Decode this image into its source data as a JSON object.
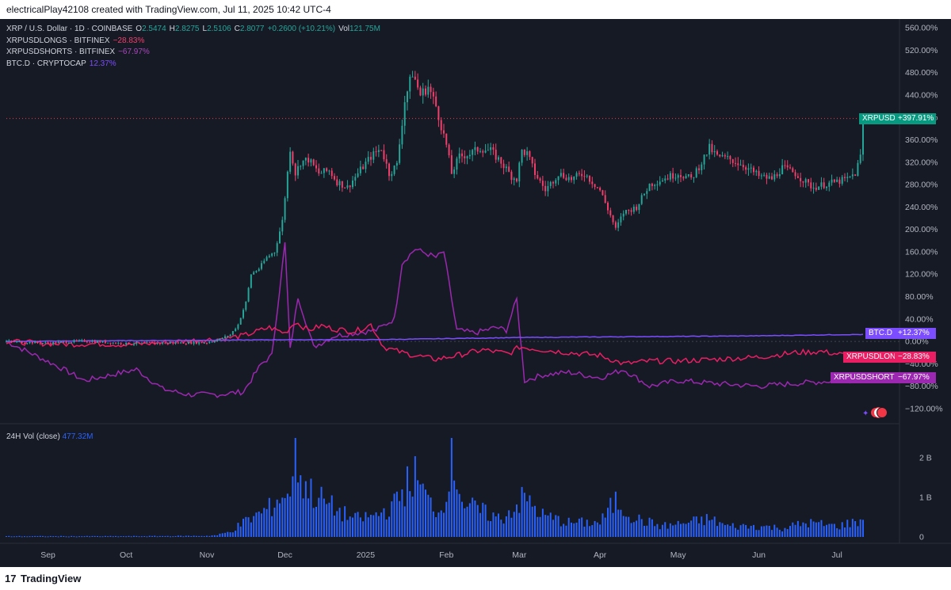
{
  "header": {
    "caption": "electricalPlay42108 created with TradingView.com, Jul 11, 2025 10:42 UTC-4"
  },
  "legend": {
    "main": {
      "symbol": "XRP / U.S. Dollar · 1D · COINBASE",
      "o_label": "O",
      "o": "2.5474",
      "h_label": "H",
      "h": "2.8275",
      "l_label": "L",
      "l": "2.5106",
      "c_label": "C",
      "c": "2.8077",
      "change": "+0.2600 (+10.21%)",
      "vol_label": "Vol",
      "vol": "121.75M"
    },
    "longs": {
      "name": "XRPUSDLONGS · BITFINEX",
      "value": "−28.83%"
    },
    "shorts": {
      "name": "XRPUSDSHORTS · BITFINEX",
      "value": "−67.97%"
    },
    "btcd": {
      "name": "BTC.D · CRYPTOCAP",
      "value": "12.37%"
    }
  },
  "volume_legend": {
    "name": "24H Vol (close)",
    "value": "477.32M"
  },
  "tags": {
    "xrpusd_name": "XRPUSD",
    "xrpusd_value": "+397.91%",
    "btcd_name": "BTC.D",
    "btcd_value": "+12.37%",
    "longs_name": "XRPUSDLONGS",
    "longs_value": "−28.83%",
    "shorts_name": "XRPUSDSHORTS",
    "shorts_value": "−67.97%"
  },
  "brand": {
    "name": "TradingView",
    "mark": "17"
  },
  "colors": {
    "background": "#161a25",
    "up": "#26a69a",
    "down": "#f23f6b",
    "longs": "#e91e63",
    "shorts": "#9c27b0",
    "btcd": "#7b4dff",
    "volume": "#2962ff"
  },
  "chart_data": [
    {
      "type": "line",
      "title": "XRP / U.S. Dollar · 1D · COINBASE (percent scale, with comparison series)",
      "ylabel": "%",
      "ylim": [
        -140,
        580
      ],
      "y_ticks": [
        "560.00%",
        "520.00%",
        "480.00%",
        "440.00%",
        "400.00%",
        "360.00%",
        "320.00%",
        "280.00%",
        "240.00%",
        "200.00%",
        "160.00%",
        "120.00%",
        "80.00%",
        "40.00%",
        "0.00%",
        "−40.00%",
        "−80.00%",
        "−120.00%"
      ],
      "y_tick_values": [
        560,
        520,
        480,
        440,
        400,
        360,
        320,
        280,
        240,
        200,
        160,
        120,
        80,
        40,
        0,
        -40,
        -80,
        -120
      ],
      "x_ticks": [
        "Sep",
        "Oct",
        "Nov",
        "Dec",
        "2025",
        "Feb",
        "Mar",
        "Apr",
        "May",
        "Jun",
        "Jul"
      ],
      "x_tick_dates": [
        "2024-09-01",
        "2024-10-01",
        "2024-11-01",
        "2024-12-01",
        "2025-01-01",
        "2025-02-01",
        "2025-03-01",
        "2025-04-01",
        "2025-05-01",
        "2025-06-01",
        "2025-07-01"
      ],
      "x_range": [
        "2024-08-16",
        "2025-07-25"
      ],
      "grid": false,
      "series": [
        {
          "name": "XRPUSD",
          "style": "candles",
          "x": [
            "2024-08-16",
            "2024-09-01",
            "2024-09-15",
            "2024-10-01",
            "2024-10-15",
            "2024-11-01",
            "2024-11-06",
            "2024-11-10",
            "2024-11-13",
            "2024-11-16",
            "2024-11-18",
            "2024-11-21",
            "2024-11-24",
            "2024-11-27",
            "2024-11-30",
            "2024-12-03",
            "2024-12-05",
            "2024-12-07",
            "2024-12-10",
            "2024-12-14",
            "2024-12-18",
            "2024-12-21",
            "2024-12-25",
            "2024-12-29",
            "2025-01-03",
            "2025-01-07",
            "2025-01-10",
            "2025-01-13",
            "2025-01-16",
            "2025-01-19",
            "2025-01-22",
            "2025-01-25",
            "2025-01-28",
            "2025-02-01",
            "2025-02-03",
            "2025-02-06",
            "2025-02-10",
            "2025-02-14",
            "2025-02-18",
            "2025-02-22",
            "2025-02-26",
            "2025-02-28",
            "2025-03-02",
            "2025-03-04",
            "2025-03-07",
            "2025-03-11",
            "2025-03-16",
            "2025-03-21",
            "2025-03-26",
            "2025-04-01",
            "2025-04-05",
            "2025-04-07",
            "2025-04-10",
            "2025-04-15",
            "2025-04-20",
            "2025-04-25",
            "2025-05-01",
            "2025-05-06",
            "2025-05-10",
            "2025-05-13",
            "2025-05-16",
            "2025-05-21",
            "2025-05-26",
            "2025-06-01",
            "2025-06-06",
            "2025-06-10",
            "2025-06-15",
            "2025-06-20",
            "2025-06-22",
            "2025-06-26",
            "2025-07-01",
            "2025-07-05",
            "2025-07-08",
            "2025-07-10",
            "2025-07-11"
          ],
          "values": [
            0,
            -3,
            1,
            -4,
            -3,
            -2,
            4,
            12,
            30,
            70,
            120,
            130,
            150,
            160,
            215,
            345,
            300,
            320,
            325,
            300,
            305,
            285,
            275,
            300,
            330,
            345,
            300,
            315,
            430,
            480,
            440,
            455,
            420,
            350,
            300,
            330,
            335,
            345,
            340,
            320,
            295,
            290,
            340,
            335,
            300,
            270,
            300,
            290,
            300,
            270,
            225,
            200,
            230,
            240,
            280,
            290,
            300,
            290,
            320,
            345,
            330,
            325,
            315,
            295,
            290,
            310,
            300,
            280,
            275,
            280,
            285,
            290,
            300,
            330,
            397.91
          ]
        },
        {
          "name": "BTC.D",
          "x": [
            "2024-08-16",
            "2024-09-15",
            "2024-11-01",
            "2024-12-01",
            "2025-01-01",
            "2025-02-01",
            "2025-03-01",
            "2025-04-01",
            "2025-05-01",
            "2025-06-01",
            "2025-07-01",
            "2025-07-11"
          ],
          "values": [
            0,
            1,
            2,
            3,
            3,
            5,
            7,
            8,
            9,
            10,
            12,
            12.37
          ]
        },
        {
          "name": "XRPUSDLONGS",
          "x": [
            "2024-08-16",
            "2024-08-28",
            "2024-09-10",
            "2024-09-20",
            "2024-10-01",
            "2024-10-15",
            "2024-10-28",
            "2024-11-05",
            "2024-11-15",
            "2024-11-25",
            "2024-12-01",
            "2024-12-05",
            "2024-12-10",
            "2024-12-15",
            "2024-12-20",
            "2024-12-28",
            "2025-01-03",
            "2025-01-08",
            "2025-01-15",
            "2025-01-20",
            "2025-01-28",
            "2025-02-05",
            "2025-02-15",
            "2025-02-25",
            "2025-03-01",
            "2025-03-10",
            "2025-03-20",
            "2025-04-01",
            "2025-04-10",
            "2025-04-20",
            "2025-05-01",
            "2025-05-15",
            "2025-06-01",
            "2025-06-15",
            "2025-06-25",
            "2025-07-05",
            "2025-07-11"
          ],
          "values": [
            0,
            -3,
            -5,
            -4,
            -6,
            -2,
            2,
            4,
            10,
            25,
            15,
            35,
            20,
            28,
            22,
            18,
            30,
            -10,
            -20,
            -25,
            -32,
            -25,
            -15,
            -22,
            -10,
            -15,
            -20,
            -25,
            -40,
            -35,
            -35,
            -32,
            -28,
            -20,
            -18,
            -25,
            -28.83
          ]
        },
        {
          "name": "XRPUSDSHORTS",
          "x": [
            "2024-08-16",
            "2024-08-25",
            "2024-09-05",
            "2024-09-15",
            "2024-09-25",
            "2024-10-05",
            "2024-10-15",
            "2024-10-25",
            "2024-11-05",
            "2024-11-15",
            "2024-11-22",
            "2024-11-26",
            "2024-12-01",
            "2024-12-03",
            "2024-12-06",
            "2024-12-12",
            "2024-12-20",
            "2024-12-28",
            "2025-01-05",
            "2025-01-12",
            "2025-01-15",
            "2025-01-20",
            "2025-01-28",
            "2025-01-31",
            "2025-02-05",
            "2025-02-12",
            "2025-02-20",
            "2025-02-24",
            "2025-02-28",
            "2025-03-03",
            "2025-03-10",
            "2025-03-20",
            "2025-04-01",
            "2025-04-10",
            "2025-04-20",
            "2025-05-01",
            "2025-05-15",
            "2025-06-01",
            "2025-06-15",
            "2025-07-01",
            "2025-07-11"
          ],
          "values": [
            0,
            -20,
            -45,
            -70,
            -60,
            -50,
            -85,
            -95,
            -95,
            -90,
            -40,
            -25,
            175,
            -15,
            80,
            -10,
            10,
            15,
            20,
            40,
            140,
            165,
            150,
            160,
            20,
            15,
            25,
            20,
            75,
            -70,
            -60,
            -55,
            -65,
            -50,
            -80,
            -70,
            -75,
            -80,
            -75,
            -70,
            -67.97
          ]
        }
      ]
    },
    {
      "type": "bar",
      "title": "24H Vol (close)",
      "ylim": [
        0,
        2.5
      ],
      "y_ticks": [
        "2 B",
        "1 B",
        "0"
      ],
      "y_tick_values": [
        2,
        1,
        0
      ],
      "unit": "B",
      "series": [
        {
          "name": "24H Vol (close)",
          "x": [
            "2024-08-16",
            "2024-09-01",
            "2024-10-01",
            "2024-11-01",
            "2024-11-05",
            "2024-11-10",
            "2024-11-15",
            "2024-11-20",
            "2024-11-25",
            "2024-11-30",
            "2024-12-02",
            "2024-12-05",
            "2024-12-08",
            "2024-12-12",
            "2024-12-16",
            "2024-12-22",
            "2024-12-28",
            "2025-01-05",
            "2025-01-12",
            "2025-01-16",
            "2025-01-20",
            "2025-01-25",
            "2025-01-30",
            "2025-02-03",
            "2025-02-08",
            "2025-02-15",
            "2025-02-22",
            "2025-03-03",
            "2025-03-10",
            "2025-03-20",
            "2025-04-01",
            "2025-04-07",
            "2025-04-15",
            "2025-04-25",
            "2025-05-05",
            "2025-05-13",
            "2025-05-20",
            "2025-06-01",
            "2025-06-10",
            "2025-06-20",
            "2025-07-01",
            "2025-07-11"
          ],
          "values": [
            0.02,
            0.02,
            0.02,
            0.03,
            0.05,
            0.15,
            0.4,
            0.6,
            0.8,
            1.2,
            1.0,
            2.45,
            1.5,
            1.2,
            1.0,
            0.7,
            0.5,
            0.6,
            0.9,
            1.4,
            1.7,
            1.0,
            0.7,
            2.25,
            0.9,
            0.7,
            0.5,
            1.1,
            0.6,
            0.4,
            0.4,
            1.0,
            0.5,
            0.3,
            0.4,
            0.5,
            0.3,
            0.3,
            0.25,
            0.4,
            0.3,
            0.48
          ]
        }
      ]
    }
  ]
}
